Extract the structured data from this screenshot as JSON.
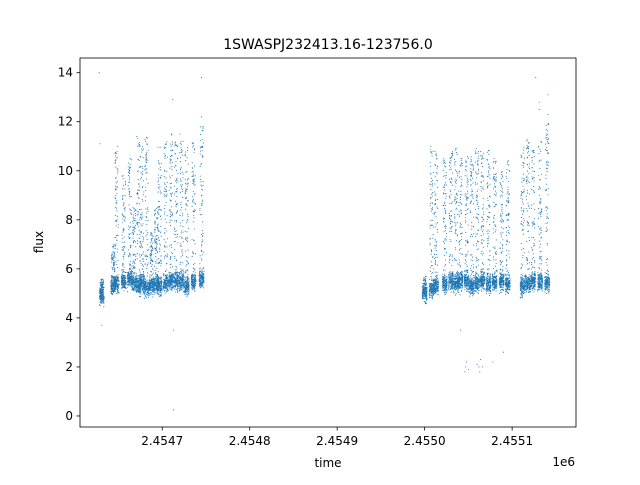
{
  "chart_data": {
    "type": "scatter",
    "title": "1SWASPJ232413.16-123756.0",
    "xlabel": "time",
    "ylabel": "flux",
    "x_offset_label": "1e6",
    "xlim": [
      2.454606,
      2.455173
    ],
    "ylim": [
      -0.45,
      14.6
    ],
    "x_ticks": [
      {
        "value": 2.4547,
        "label": "2.4547"
      },
      {
        "value": 2.4548,
        "label": "2.4548"
      },
      {
        "value": 2.4549,
        "label": "2.4549"
      },
      {
        "value": 2.455,
        "label": "2.4550"
      },
      {
        "value": 2.4551,
        "label": "2.4551"
      }
    ],
    "y_ticks": [
      {
        "value": 0,
        "label": "0"
      },
      {
        "value": 2,
        "label": "2"
      },
      {
        "value": 4,
        "label": "4"
      },
      {
        "value": 6,
        "label": "6"
      },
      {
        "value": 8,
        "label": "8"
      },
      {
        "value": 10,
        "label": "10"
      },
      {
        "value": 12,
        "label": "12"
      },
      {
        "value": 14,
        "label": "14"
      }
    ],
    "grid": false,
    "marker_color": "#1f77b4",
    "series": [
      {
        "nights": [
          {
            "x": 2.454631,
            "low": 3.8,
            "high": 5.6,
            "base": 4.9
          },
          {
            "x": 2.454644,
            "low": 4.2,
            "high": 7.0,
            "base": 5.3
          },
          {
            "x": 2.454648,
            "low": 4.4,
            "high": 11.0,
            "base": 5.4
          },
          {
            "x": 2.454656,
            "low": 4.5,
            "high": 9.8,
            "base": 5.5
          },
          {
            "x": 2.454663,
            "low": 4.6,
            "high": 10.5,
            "base": 5.6
          },
          {
            "x": 2.454668,
            "low": 4.5,
            "high": 8.5,
            "base": 5.4
          },
          {
            "x": 2.454673,
            "low": 4.2,
            "high": 11.5,
            "base": 5.3
          },
          {
            "x": 2.454677,
            "low": 4.3,
            "high": 11.0,
            "base": 5.4
          },
          {
            "x": 2.454682,
            "low": 4.1,
            "high": 11.4,
            "base": 5.2
          },
          {
            "x": 2.454688,
            "low": 4.3,
            "high": 7.5,
            "base": 5.3
          },
          {
            "x": 2.454693,
            "low": 4.5,
            "high": 8.5,
            "base": 5.4
          },
          {
            "x": 2.454697,
            "low": 4.2,
            "high": 11.0,
            "base": 5.3
          },
          {
            "x": 2.454704,
            "low": 4.3,
            "high": 11.2,
            "base": 5.4
          },
          {
            "x": 2.45471,
            "low": 4.3,
            "high": 11.5,
            "base": 5.5
          },
          {
            "x": 2.454716,
            "low": 4.5,
            "high": 11.3,
            "base": 5.5
          },
          {
            "x": 2.454722,
            "low": 4.4,
            "high": 11.5,
            "base": 5.5
          },
          {
            "x": 2.454728,
            "low": 4.3,
            "high": 11.0,
            "base": 5.3
          },
          {
            "x": 2.454736,
            "low": 4.3,
            "high": 11.2,
            "base": 5.5
          },
          {
            "x": 2.454745,
            "low": 4.5,
            "high": 12.0,
            "base": 5.6
          },
          {
            "x": 2.455,
            "low": 4.3,
            "high": 5.7,
            "base": 5.0
          },
          {
            "x": 2.455008,
            "low": 4.4,
            "high": 11.0,
            "base": 5.2
          },
          {
            "x": 2.455013,
            "low": 4.3,
            "high": 10.8,
            "base": 5.3
          },
          {
            "x": 2.455023,
            "low": 4.2,
            "high": 10.5,
            "base": 5.4
          },
          {
            "x": 2.45503,
            "low": 4.3,
            "high": 10.8,
            "base": 5.5
          },
          {
            "x": 2.455036,
            "low": 4.4,
            "high": 11.0,
            "base": 5.4
          },
          {
            "x": 2.455041,
            "low": 4.5,
            "high": 10.5,
            "base": 5.5
          },
          {
            "x": 2.455048,
            "low": 4.3,
            "high": 10.8,
            "base": 5.5
          },
          {
            "x": 2.455054,
            "low": 4.2,
            "high": 10.6,
            "base": 5.3
          },
          {
            "x": 2.45506,
            "low": 4.2,
            "high": 11.0,
            "base": 5.4
          },
          {
            "x": 2.455066,
            "low": 4.3,
            "high": 10.8,
            "base": 5.5
          },
          {
            "x": 2.455073,
            "low": 4.3,
            "high": 10.9,
            "base": 5.4
          },
          {
            "x": 2.45508,
            "low": 4.4,
            "high": 10.5,
            "base": 5.5
          },
          {
            "x": 2.455088,
            "low": 4.5,
            "high": 10.0,
            "base": 5.5
          },
          {
            "x": 2.455095,
            "low": 4.5,
            "high": 10.6,
            "base": 5.4
          },
          {
            "x": 2.455112,
            "low": 4.4,
            "high": 11.0,
            "base": 5.3
          },
          {
            "x": 2.455118,
            "low": 4.3,
            "high": 11.3,
            "base": 5.4
          },
          {
            "x": 2.455124,
            "low": 4.4,
            "high": 11.0,
            "base": 5.5
          },
          {
            "x": 2.455132,
            "low": 4.5,
            "high": 11.2,
            "base": 5.5
          },
          {
            "x": 2.45514,
            "low": 4.3,
            "high": 12.0,
            "base": 5.4
          }
        ],
        "points": [
          {
            "x": 2.454628,
            "y": 14.0
          },
          {
            "x": 2.454629,
            "y": 11.1
          },
          {
            "x": 2.454631,
            "y": 3.7
          },
          {
            "x": 2.454671,
            "y": 11.4
          },
          {
            "x": 2.454712,
            "y": 12.9
          },
          {
            "x": 2.454713,
            "y": 3.5
          },
          {
            "x": 2.454713,
            "y": 0.25
          },
          {
            "x": 2.454745,
            "y": 13.8
          },
          {
            "x": 2.454745,
            "y": 12.2
          },
          {
            "x": 2.455041,
            "y": 3.5
          },
          {
            "x": 2.455046,
            "y": 1.8
          },
          {
            "x": 2.455047,
            "y": 2.0
          },
          {
            "x": 2.455048,
            "y": 2.2
          },
          {
            "x": 2.45505,
            "y": 1.9
          },
          {
            "x": 2.45506,
            "y": 2.1
          },
          {
            "x": 2.455062,
            "y": 2.0
          },
          {
            "x": 2.455063,
            "y": 1.8
          },
          {
            "x": 2.455064,
            "y": 2.3
          },
          {
            "x": 2.455066,
            "y": 2.0
          },
          {
            "x": 2.455078,
            "y": 2.2
          },
          {
            "x": 2.45509,
            "y": 2.6
          },
          {
            "x": 2.455127,
            "y": 13.8
          },
          {
            "x": 2.455131,
            "y": 12.8
          },
          {
            "x": 2.455131,
            "y": 12.5
          },
          {
            "x": 2.455141,
            "y": 13.1
          },
          {
            "x": 2.455141,
            "y": 12.3
          }
        ]
      }
    ]
  }
}
